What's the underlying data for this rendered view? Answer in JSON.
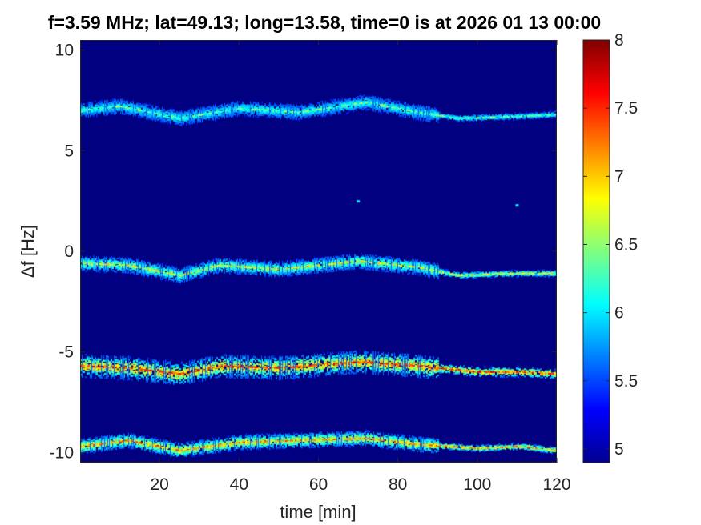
{
  "chart_data": {
    "type": "heatmap",
    "title": "f=3.59 MHz;  lat=49.13; long=13.58, time=0 is at 2026 01 13 00:00",
    "xlabel": "time [min]",
    "ylabel": "Δf [Hz]",
    "xlim": [
      0,
      120
    ],
    "ylim": [
      -10.5,
      10.5
    ],
    "x_ticks": [
      20,
      40,
      60,
      80,
      100,
      120
    ],
    "x_tick_labels": [
      "20",
      "40",
      "60",
      "80",
      "100",
      "120"
    ],
    "y_ticks": [
      -10,
      -5,
      0,
      5,
      10
    ],
    "y_tick_labels": [
      "-10",
      "-5",
      "0",
      "5",
      "10"
    ],
    "colorbar": {
      "colormap": "jet",
      "clim": [
        4.9,
        8
      ],
      "ticks": [
        5,
        5.5,
        6,
        6.5,
        7,
        7.5,
        8
      ],
      "tick_labels": [
        "5",
        "5.5",
        "6",
        "6.5",
        "7",
        "7.5",
        "8"
      ]
    },
    "background_level": 4.9,
    "traces": [
      {
        "name": "trace-plus-7",
        "points": [
          [
            0,
            7.0
          ],
          [
            10,
            7.2
          ],
          [
            25,
            6.6
          ],
          [
            40,
            7.1
          ],
          [
            55,
            6.9
          ],
          [
            72,
            7.4
          ],
          [
            85,
            6.9
          ],
          [
            95,
            6.6
          ],
          [
            110,
            6.7
          ],
          [
            120,
            6.8
          ]
        ],
        "peak_level": 6.4
      },
      {
        "name": "trace-minus-1",
        "points": [
          [
            0,
            -0.6
          ],
          [
            12,
            -0.7
          ],
          [
            25,
            -1.2
          ],
          [
            35,
            -0.7
          ],
          [
            50,
            -0.9
          ],
          [
            70,
            -0.5
          ],
          [
            85,
            -0.8
          ],
          [
            95,
            -1.2
          ],
          [
            110,
            -1.1
          ],
          [
            120,
            -1.1
          ]
        ],
        "peak_level": 6.8
      },
      {
        "name": "trace-minus-6",
        "points": [
          [
            0,
            -5.7
          ],
          [
            12,
            -5.8
          ],
          [
            25,
            -6.1
          ],
          [
            35,
            -5.7
          ],
          [
            50,
            -5.8
          ],
          [
            70,
            -5.5
          ],
          [
            85,
            -5.7
          ],
          [
            100,
            -6.0
          ],
          [
            110,
            -6.0
          ],
          [
            120,
            -6.1
          ]
        ],
        "peak_level": 7.5
      },
      {
        "name": "trace-minus-10",
        "points": [
          [
            0,
            -9.7
          ],
          [
            12,
            -9.4
          ],
          [
            25,
            -9.9
          ],
          [
            40,
            -9.5
          ],
          [
            55,
            -9.4
          ],
          [
            72,
            -9.3
          ],
          [
            85,
            -9.6
          ],
          [
            100,
            -9.8
          ],
          [
            110,
            -9.7
          ],
          [
            120,
            -9.9
          ]
        ],
        "peak_level": 7.2
      }
    ],
    "spots": [
      {
        "x": 70,
        "y": 2.5,
        "level": 6.0
      },
      {
        "x": 110,
        "y": 2.3,
        "level": 6.0
      }
    ]
  }
}
